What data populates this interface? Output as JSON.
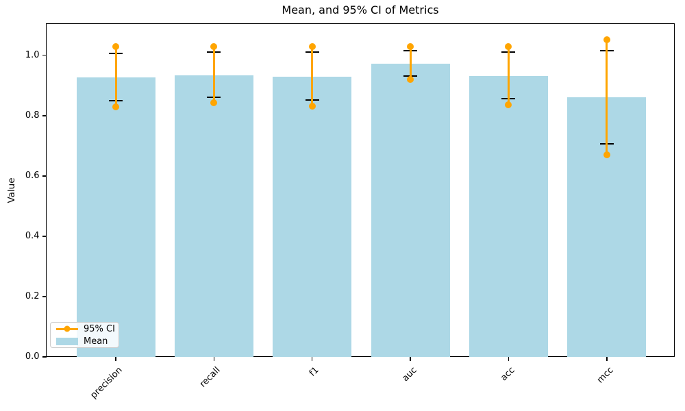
{
  "chart_data": {
    "type": "bar",
    "title": "Mean, and 95% CI of Metrics",
    "ylabel": "Value",
    "xlabel": "",
    "categories": [
      "precision",
      "recall",
      "f1",
      "auc",
      "acc",
      "mcc"
    ],
    "series": [
      {
        "name": "Mean",
        "type": "bar",
        "color": "#ADD8E6",
        "values": [
          0.927,
          0.933,
          0.93,
          0.973,
          0.931,
          0.86
        ]
      },
      {
        "name": "95% CI",
        "type": "errorbar",
        "color": "#FFA500",
        "cap_color": "#000000",
        "ci_lower": [
          0.828,
          0.843,
          0.832,
          0.921,
          0.836,
          0.669
        ],
        "ci_upper": [
          1.029,
          1.028,
          1.028,
          1.029,
          1.029,
          1.052
        ],
        "cap_lower": [
          0.85,
          0.861,
          0.852,
          0.931,
          0.856,
          0.707
        ],
        "cap_upper": [
          1.007,
          1.01,
          1.01,
          1.016,
          1.01,
          1.016
        ]
      }
    ],
    "ylim": [
      0,
      1.105
    ],
    "yticks": [
      "0.0",
      "0.2",
      "0.4",
      "0.6",
      "0.8",
      "1.0"
    ],
    "grid": false,
    "legend": {
      "position": "lower left",
      "entries": [
        {
          "label": "95% CI",
          "marker": "line-dot",
          "color": "#FFA500"
        },
        {
          "label": "Mean",
          "marker": "patch",
          "color": "#ADD8E6"
        }
      ]
    }
  }
}
